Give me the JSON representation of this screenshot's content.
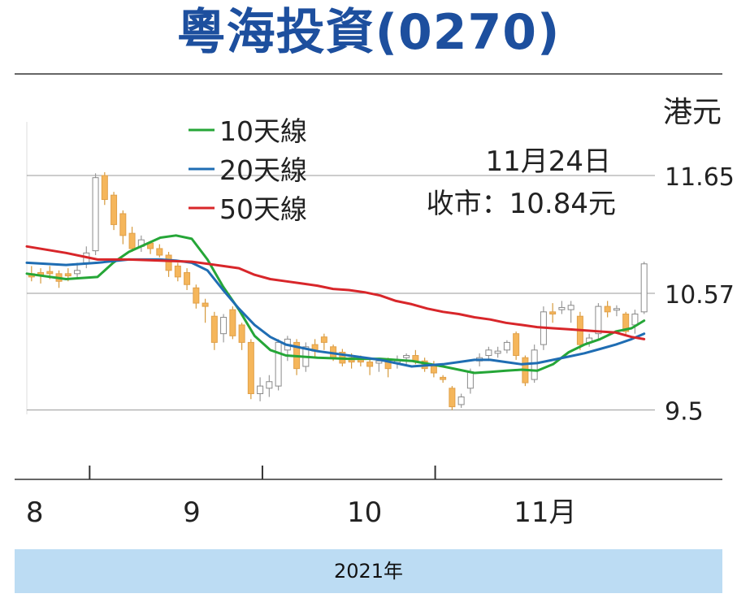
{
  "title": "粵海投資(0270)",
  "footer": {
    "year": "2021年"
  },
  "colors": {
    "title": "#1d4f9e",
    "ma10": "#25a637",
    "ma20": "#1f6db3",
    "ma50": "#d8262a",
    "candle_down": "#f5b65b",
    "candle_up": "#ffffff",
    "footer_band": "#bcdcf3"
  },
  "chart_data": {
    "type": "candlestick",
    "unit": "港元",
    "legend": [
      {
        "key": "ma10",
        "label": "10天線"
      },
      {
        "key": "ma20",
        "label": "20天線"
      },
      {
        "key": "ma50",
        "label": "50天線"
      }
    ],
    "legend_position": "top-left",
    "annotation": {
      "date": "11月24日",
      "close_text": "收市：10.84元"
    },
    "y_ticks": [
      "11.65",
      "10.57",
      "9.5"
    ],
    "y_tick_values": [
      11.65,
      10.57,
      9.5
    ],
    "ylim": [
      8.9,
      12.3
    ],
    "x_month_labels": [
      {
        "label": "8",
        "day": -2
      },
      {
        "label": "9",
        "day": 8
      },
      {
        "label": "10",
        "day": 19
      },
      {
        "label": "11月",
        "day": 30.5
      }
    ],
    "x_month_ticks": [
      1.5,
      12.5,
      23.5
    ],
    "x_range": [
      -2.5,
      38.5
    ],
    "candles": [
      {
        "o": 10.75,
        "c": 10.72,
        "h": 10.82,
        "l": 10.68
      },
      {
        "o": 10.76,
        "c": 10.73,
        "h": 10.8,
        "l": 10.66
      },
      {
        "o": 10.77,
        "c": 10.75,
        "h": 10.82,
        "l": 10.7
      },
      {
        "o": 10.75,
        "c": 10.68,
        "h": 10.78,
        "l": 10.62
      },
      {
        "o": 10.75,
        "c": 10.73,
        "h": 10.8,
        "l": 10.68
      },
      {
        "o": 10.75,
        "c": 10.78,
        "h": 10.85,
        "l": 10.7
      },
      {
        "o": 10.85,
        "c": 10.94,
        "h": 11.0,
        "l": 10.8
      },
      {
        "o": 10.96,
        "c": 11.63,
        "h": 11.67,
        "l": 10.92
      },
      {
        "o": 11.65,
        "c": 11.43,
        "h": 11.68,
        "l": 11.38
      },
      {
        "o": 11.47,
        "c": 11.2,
        "h": 11.5,
        "l": 11.15
      },
      {
        "o": 11.3,
        "c": 11.1,
        "h": 11.33,
        "l": 11.02
      },
      {
        "o": 11.12,
        "c": 10.98,
        "h": 11.18,
        "l": 10.95
      },
      {
        "o": 11.0,
        "c": 11.06,
        "h": 11.1,
        "l": 10.95
      },
      {
        "o": 11.03,
        "c": 10.98,
        "h": 11.05,
        "l": 10.93
      },
      {
        "o": 10.98,
        "c": 10.92,
        "h": 11.02,
        "l": 10.9
      },
      {
        "o": 10.92,
        "c": 10.78,
        "h": 10.95,
        "l": 10.72
      },
      {
        "o": 10.82,
        "c": 10.72,
        "h": 10.85,
        "l": 10.68
      },
      {
        "o": 10.76,
        "c": 10.65,
        "h": 10.8,
        "l": 10.6
      },
      {
        "o": 10.62,
        "c": 10.48,
        "h": 10.65,
        "l": 10.43
      },
      {
        "o": 10.48,
        "c": 10.45,
        "h": 10.52,
        "l": 10.3
      },
      {
        "o": 10.36,
        "c": 10.12,
        "h": 10.4,
        "l": 10.05
      },
      {
        "o": 10.2,
        "c": 10.35,
        "h": 10.38,
        "l": 10.12
      },
      {
        "o": 10.42,
        "c": 10.18,
        "h": 10.45,
        "l": 10.15
      },
      {
        "o": 10.28,
        "c": 10.12,
        "h": 10.3,
        "l": 10.05
      },
      {
        "o": 10.12,
        "c": 9.65,
        "h": 10.15,
        "l": 9.6
      },
      {
        "o": 9.65,
        "c": 9.72,
        "h": 9.8,
        "l": 9.58
      },
      {
        "o": 9.7,
        "c": 9.76,
        "h": 9.82,
        "l": 9.62
      },
      {
        "o": 9.72,
        "c": 10.12,
        "h": 10.15,
        "l": 9.68
      },
      {
        "o": 10.05,
        "c": 10.15,
        "h": 10.18,
        "l": 9.95
      },
      {
        "o": 10.12,
        "c": 9.88,
        "h": 10.15,
        "l": 9.82
      },
      {
        "o": 9.9,
        "c": 10.08,
        "h": 10.12,
        "l": 9.85
      },
      {
        "o": 10.1,
        "c": 10.04,
        "h": 10.15,
        "l": 9.98
      },
      {
        "o": 10.17,
        "c": 10.12,
        "h": 10.2,
        "l": 10.05
      },
      {
        "o": 10.08,
        "c": 9.98,
        "h": 10.1,
        "l": 9.95
      },
      {
        "o": 10.03,
        "c": 9.93,
        "h": 10.06,
        "l": 9.9
      },
      {
        "o": 9.98,
        "c": 9.94,
        "h": 10.02,
        "l": 9.88
      },
      {
        "o": 9.98,
        "c": 9.94,
        "h": 10.0,
        "l": 9.9
      },
      {
        "o": 9.94,
        "c": 9.9,
        "h": 9.98,
        "l": 9.82
      }
    ],
    "candles_late_start": 38,
    "candles_late": [
      {
        "o": 9.93,
        "c": 9.95,
        "h": 9.98,
        "l": 9.85
      },
      {
        "o": 9.95,
        "c": 9.88,
        "h": 9.98,
        "l": 9.8
      },
      {
        "o": 9.94,
        "c": 9.95,
        "h": 10.0,
        "l": 9.88
      },
      {
        "o": 9.98,
        "c": 10.0,
        "h": 10.02,
        "l": 9.9
      },
      {
        "o": 10.0,
        "c": 9.95,
        "h": 10.05,
        "l": 9.92
      },
      {
        "o": 9.95,
        "c": 9.88,
        "h": 9.98,
        "l": 9.85
      },
      {
        "o": 9.9,
        "c": 9.84,
        "h": 9.95,
        "l": 9.8
      },
      {
        "o": 9.8,
        "c": 9.78,
        "h": 9.82,
        "l": 9.75
      },
      {
        "o": 9.7,
        "c": 9.53,
        "h": 9.72,
        "l": 9.5
      },
      {
        "o": 9.55,
        "c": 9.62,
        "h": 9.65,
        "l": 9.52
      },
      {
        "o": 9.7,
        "c": 9.85,
        "h": 9.88,
        "l": 9.65
      },
      {
        "o": 9.95,
        "c": 9.98,
        "h": 10.02,
        "l": 9.9
      },
      {
        "o": 10.0,
        "c": 10.05,
        "h": 10.08,
        "l": 9.95
      },
      {
        "o": 10.02,
        "c": 10.04,
        "h": 10.08,
        "l": 9.98
      },
      {
        "o": 10.05,
        "c": 10.12,
        "h": 10.14,
        "l": 10.02
      },
      {
        "o": 10.2,
        "c": 10.0,
        "h": 10.22,
        "l": 9.96
      },
      {
        "o": 9.98,
        "c": 9.75,
        "h": 10.0,
        "l": 9.72
      },
      {
        "o": 9.78,
        "c": 10.05,
        "h": 10.1,
        "l": 9.75
      },
      {
        "o": 10.1,
        "c": 10.4,
        "h": 10.45,
        "l": 10.05
      },
      {
        "o": 10.4,
        "c": 10.38,
        "h": 10.48,
        "l": 10.3
      },
      {
        "o": 10.42,
        "c": 10.44,
        "h": 10.5,
        "l": 10.38
      },
      {
        "o": 10.42,
        "c": 10.46,
        "h": 10.5,
        "l": 10.3
      },
      {
        "o": 10.36,
        "c": 10.1,
        "h": 10.4,
        "l": 10.05
      },
      {
        "o": 10.12,
        "c": 10.16,
        "h": 10.2,
        "l": 10.08
      },
      {
        "o": 10.2,
        "c": 10.45,
        "h": 10.48,
        "l": 10.15
      },
      {
        "o": 10.45,
        "c": 10.4,
        "h": 10.5,
        "l": 10.35
      },
      {
        "o": 10.42,
        "c": 10.43,
        "h": 10.46,
        "l": 10.36
      },
      {
        "o": 10.38,
        "c": 10.22,
        "h": 10.4,
        "l": 10.18
      },
      {
        "o": 10.28,
        "c": 10.38,
        "h": 10.42,
        "l": 10.2
      },
      {
        "o": 10.4,
        "c": 10.84,
        "h": 10.86,
        "l": 10.38
      }
    ],
    "series": [
      {
        "key": "ma10",
        "x": [
          -2.5,
          0,
          2,
          3,
          4,
          6,
          7,
          8,
          9,
          10,
          11,
          12,
          13,
          14,
          15,
          16,
          18,
          20,
          22,
          24,
          26,
          27,
          28,
          29,
          30,
          31,
          32,
          33,
          34,
          35,
          36,
          36.8
        ],
        "values": [
          10.75,
          10.7,
          10.72,
          10.85,
          10.95,
          11.08,
          11.1,
          11.07,
          10.88,
          10.63,
          10.42,
          10.18,
          10.05,
          10.0,
          9.99,
          9.98,
          9.97,
          9.97,
          9.95,
          9.9,
          9.84,
          9.85,
          9.86,
          9.87,
          9.86,
          9.92,
          10.03,
          10.1,
          10.15,
          10.22,
          10.25,
          10.32
        ]
      },
      {
        "key": "ma20",
        "x": [
          -2.5,
          0,
          2,
          4,
          6,
          7,
          8,
          9,
          10,
          11,
          12,
          13,
          14,
          15,
          16,
          18,
          20,
          22,
          23,
          24,
          25,
          26,
          27,
          28,
          29,
          30,
          31,
          32,
          33,
          34,
          35,
          36,
          36.8
        ],
        "values": [
          10.85,
          10.83,
          10.85,
          10.88,
          10.88,
          10.87,
          10.85,
          10.78,
          10.6,
          10.43,
          10.28,
          10.17,
          10.1,
          10.07,
          10.04,
          10.0,
          9.96,
          9.9,
          9.91,
          9.92,
          9.94,
          9.96,
          9.96,
          9.94,
          9.92,
          9.93,
          9.96,
          9.99,
          10.02,
          10.06,
          10.1,
          10.15,
          10.2
        ]
      },
      {
        "key": "ma50",
        "x": [
          -2.5,
          0,
          2,
          4,
          6,
          8,
          9,
          10,
          11,
          12,
          13,
          14,
          15,
          16,
          17,
          18,
          19,
          20,
          21,
          22,
          23,
          24,
          25,
          26,
          27,
          28,
          29,
          30,
          31,
          32,
          33,
          34,
          35,
          36,
          36.8
        ],
        "values": [
          11.0,
          10.94,
          10.88,
          10.88,
          10.87,
          10.86,
          10.84,
          10.82,
          10.8,
          10.74,
          10.7,
          10.68,
          10.66,
          10.64,
          10.61,
          10.6,
          10.58,
          10.55,
          10.5,
          10.47,
          10.43,
          10.4,
          10.38,
          10.35,
          10.33,
          10.3,
          10.28,
          10.26,
          10.25,
          10.24,
          10.23,
          10.22,
          10.21,
          10.17,
          10.15
        ]
      }
    ]
  }
}
